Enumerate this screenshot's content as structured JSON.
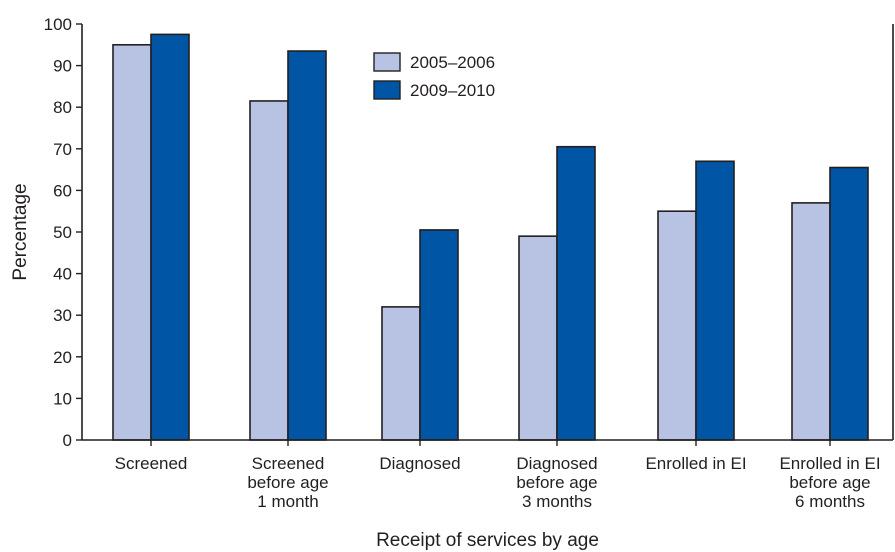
{
  "chart_data": {
    "type": "bar",
    "title": "",
    "xlabel": "Receipt of services by age",
    "ylabel": "Percentage",
    "ylim": [
      0,
      100
    ],
    "yticks": [
      0,
      10,
      20,
      30,
      40,
      50,
      60,
      70,
      80,
      90,
      100
    ],
    "grid": false,
    "legend_position": "top-center",
    "categories": [
      [
        "Screened"
      ],
      [
        "Screened",
        "before age",
        "1 month"
      ],
      [
        "Diagnosed"
      ],
      [
        "Diagnosed",
        "before age",
        "3 months"
      ],
      [
        "Enrolled in EI"
      ],
      [
        "Enrolled in EI",
        "before age",
        "6 months"
      ]
    ],
    "series": [
      {
        "name": "2005–2006",
        "color": "#b8c2e2",
        "values": [
          95,
          81.5,
          32,
          49,
          55,
          57
        ]
      },
      {
        "name": "2009–2010",
        "color": "#0055a5",
        "values": [
          97.5,
          93.5,
          50.5,
          70.5,
          67,
          65.5
        ]
      }
    ]
  }
}
